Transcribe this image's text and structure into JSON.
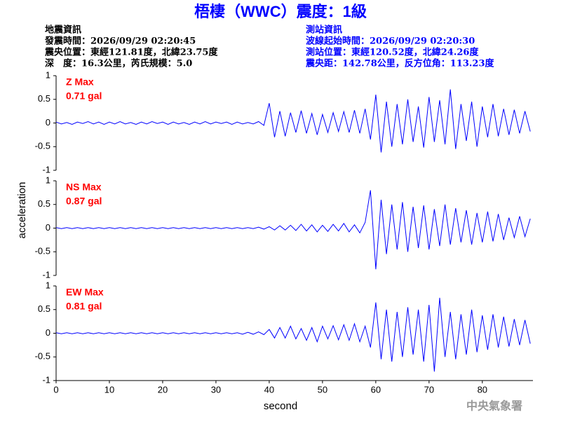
{
  "chart_data": {
    "type": "line",
    "title": "梧棲（WWC）震度：1級",
    "info_left": [
      "地震資訊",
      "發震時間：2026/09/29 02:20:45",
      "震央位置：東經121.81度，北緯23.75度",
      "深　度：16.3公里，芮氏規模：5.0"
    ],
    "info_right": [
      "測站資訊",
      "波線起始時間：2026/09/29 02:20:30",
      "測站位置：東經120.52度，北緯24.26度",
      "震央距：142.78公里，反方位角：113.23度"
    ],
    "footer": "中央氣象署",
    "xlabel": "second",
    "ylabel": "acceleration",
    "xlim": [
      0,
      89.5
    ],
    "xticks": [
      0,
      10,
      20,
      30,
      40,
      50,
      60,
      70,
      80
    ],
    "ylim": [
      -1,
      1
    ],
    "yticks": [
      1,
      0.5,
      0,
      -0.5,
      -1
    ],
    "x": [
      0,
      1,
      2,
      3,
      4,
      5,
      6,
      7,
      8,
      9,
      10,
      11,
      12,
      13,
      14,
      15,
      16,
      17,
      18,
      19,
      20,
      21,
      22,
      23,
      24,
      25,
      26,
      27,
      28,
      29,
      30,
      31,
      32,
      33,
      34,
      35,
      36,
      37,
      38,
      39,
      40,
      41,
      42,
      43,
      44,
      45,
      46,
      47,
      48,
      49,
      50,
      51,
      52,
      53,
      54,
      55,
      56,
      57,
      58,
      59,
      60,
      61,
      62,
      63,
      64,
      65,
      66,
      67,
      68,
      69,
      70,
      71,
      72,
      73,
      74,
      75,
      76,
      77,
      78,
      79,
      80,
      81,
      82,
      83,
      84,
      85,
      86,
      87,
      88,
      89
    ],
    "series": [
      {
        "name": "Z Max",
        "peak": "0.71 gal",
        "color": "#0000ff",
        "label_color": "#ff0000",
        "values": [
          0.02,
          -0.02,
          0.01,
          -0.03,
          0.02,
          -0.01,
          0.03,
          -0.02,
          0.02,
          -0.03,
          0.02,
          -0.02,
          0.03,
          -0.02,
          0.01,
          -0.03,
          0.02,
          -0.02,
          0.03,
          -0.01,
          0.02,
          -0.03,
          0.02,
          -0.02,
          0.01,
          -0.03,
          0.02,
          -0.02,
          0.03,
          -0.02,
          0.02,
          -0.01,
          0.02,
          -0.03,
          0.02,
          -0.02,
          0.01,
          -0.02,
          0.03,
          -0.05,
          0.42,
          -0.3,
          0.25,
          -0.28,
          0.22,
          -0.2,
          0.26,
          -0.22,
          0.2,
          -0.25,
          0.18,
          -0.2,
          0.22,
          -0.18,
          0.24,
          -0.2,
          0.27,
          -0.22,
          0.3,
          -0.35,
          0.6,
          -0.62,
          0.45,
          -0.5,
          0.4,
          -0.45,
          0.5,
          -0.4,
          0.35,
          -0.52,
          0.55,
          -0.4,
          0.48,
          -0.45,
          0.71,
          -0.55,
          0.4,
          -0.38,
          0.45,
          -0.5,
          0.35,
          -0.3,
          0.4,
          -0.28,
          0.3,
          -0.25,
          0.28,
          -0.22,
          0.25,
          -0.18
        ]
      },
      {
        "name": "NS Max",
        "peak": "0.87 gal",
        "color": "#0000ff",
        "label_color": "#ff0000",
        "values": [
          0.01,
          -0.01,
          0.01,
          -0.01,
          0.01,
          -0.01,
          0.01,
          -0.01,
          0.01,
          -0.01,
          0.01,
          -0.01,
          0.01,
          -0.01,
          0.01,
          -0.01,
          0.01,
          -0.01,
          0.01,
          -0.01,
          0.01,
          -0.01,
          0.01,
          -0.01,
          0.01,
          -0.01,
          0.01,
          -0.01,
          0.01,
          -0.01,
          0.01,
          -0.01,
          0.01,
          -0.01,
          0.01,
          -0.01,
          0.01,
          -0.01,
          0.02,
          -0.02,
          0.03,
          -0.04,
          0.05,
          -0.04,
          0.06,
          -0.05,
          0.08,
          -0.06,
          0.07,
          -0.08,
          0.06,
          -0.07,
          0.08,
          -0.06,
          0.1,
          -0.08,
          0.07,
          -0.1,
          0.12,
          0.8,
          -0.87,
          0.6,
          -0.55,
          0.5,
          -0.45,
          0.55,
          -0.5,
          0.45,
          -0.42,
          0.48,
          -0.45,
          0.4,
          -0.38,
          0.5,
          -0.35,
          0.42,
          -0.3,
          0.38,
          -0.35,
          0.32,
          -0.3,
          0.35,
          -0.28,
          0.3,
          -0.25,
          0.22,
          -0.2,
          0.25,
          -0.18,
          0.2
        ]
      },
      {
        "name": "EW Max",
        "peak": "0.81 gal",
        "color": "#0000ff",
        "label_color": "#ff0000",
        "values": [
          0.01,
          -0.01,
          0.01,
          -0.01,
          0.01,
          -0.01,
          0.01,
          -0.01,
          0.01,
          -0.01,
          0.01,
          -0.01,
          0.01,
          -0.01,
          0.01,
          -0.01,
          0.01,
          -0.01,
          0.01,
          -0.01,
          0.01,
          -0.01,
          0.01,
          -0.01,
          0.01,
          -0.01,
          0.01,
          -0.01,
          0.01,
          -0.01,
          0.01,
          -0.01,
          0.01,
          -0.01,
          0.01,
          -0.02,
          0.02,
          -0.02,
          0.03,
          -0.03,
          0.08,
          -0.1,
          0.12,
          -0.1,
          0.15,
          -0.12,
          0.1,
          -0.15,
          0.12,
          -0.18,
          0.15,
          -0.12,
          0.16,
          -0.14,
          0.18,
          -0.15,
          0.2,
          -0.18,
          0.15,
          -0.3,
          0.65,
          -0.55,
          0.5,
          -0.6,
          0.45,
          -0.5,
          0.55,
          -0.45,
          0.5,
          -0.6,
          0.6,
          -0.81,
          0.75,
          -0.5,
          0.45,
          -0.55,
          0.4,
          -0.45,
          0.5,
          -0.4,
          0.38,
          -0.35,
          0.4,
          -0.3,
          0.35,
          -0.28,
          0.3,
          -0.25,
          0.28,
          -0.22
        ]
      }
    ]
  }
}
